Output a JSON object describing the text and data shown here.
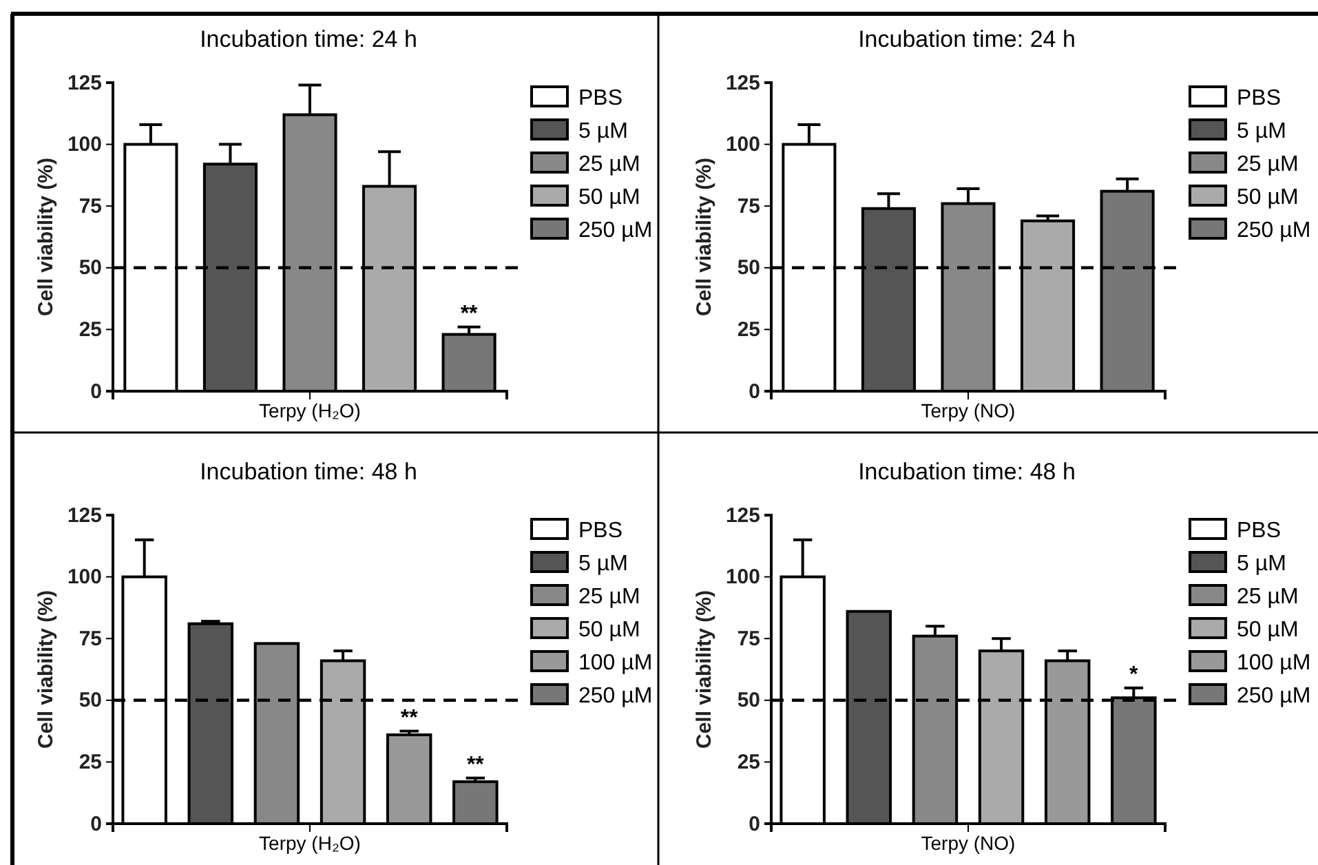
{
  "chart_data": [
    {
      "type": "bar",
      "title": "Incubation time: 24 h",
      "xlabel": "Terpy (H₂O)",
      "ylabel": "Cell viability (%)",
      "categories": [
        null
      ],
      "ylim": [
        0,
        125
      ],
      "yticks": [
        0,
        25,
        50,
        75,
        100,
        125
      ],
      "legend": "right",
      "ref_lines": [
        {
          "axis": "y",
          "value": 50,
          "line_style": "dashed"
        }
      ],
      "series": [
        {
          "name": "PBS",
          "color": "#ffffff",
          "values": [
            100
          ],
          "errors": [
            8
          ]
        },
        {
          "name": "5 µM",
          "color": "#555555",
          "values": [
            92
          ],
          "errors": [
            8
          ]
        },
        {
          "name": "25 µM",
          "color": "#888888",
          "values": [
            112
          ],
          "errors": [
            12
          ]
        },
        {
          "name": "50 µM",
          "color": "#aaaaaa",
          "values": [
            83
          ],
          "errors": [
            14
          ]
        },
        {
          "name": "250 µM",
          "color": "#777777",
          "values": [
            23
          ],
          "errors": [
            3
          ],
          "value_labels": [
            "**"
          ]
        }
      ]
    },
    {
      "type": "bar",
      "title": "Incubation time: 24 h",
      "xlabel": "Terpy (NO)",
      "ylabel": "Cell viability (%)",
      "categories": [
        null
      ],
      "ylim": [
        0,
        125
      ],
      "yticks": [
        0,
        25,
        50,
        75,
        100,
        125
      ],
      "legend": "right",
      "ref_lines": [
        {
          "axis": "y",
          "value": 50,
          "line_style": "dashed"
        }
      ],
      "series": [
        {
          "name": "PBS",
          "color": "#ffffff",
          "values": [
            100
          ],
          "errors": [
            8
          ]
        },
        {
          "name": "5 µM",
          "color": "#555555",
          "values": [
            74
          ],
          "errors": [
            6
          ]
        },
        {
          "name": "25 µM",
          "color": "#888888",
          "values": [
            76
          ],
          "errors": [
            6
          ]
        },
        {
          "name": "50 µM",
          "color": "#aaaaaa",
          "values": [
            69
          ],
          "errors": [
            2
          ]
        },
        {
          "name": "250 µM",
          "color": "#777777",
          "values": [
            81
          ],
          "errors": [
            5
          ]
        }
      ]
    },
    {
      "type": "bar",
      "title": "Incubation time: 48 h",
      "xlabel": "Terpy (H₂O)",
      "ylabel": "Cell viability (%)",
      "categories": [
        null
      ],
      "ylim": [
        0,
        125
      ],
      "yticks": [
        0,
        25,
        50,
        75,
        100,
        125
      ],
      "legend": "right",
      "ref_lines": [
        {
          "axis": "y",
          "value": 50,
          "line_style": "dashed"
        }
      ],
      "series": [
        {
          "name": "PBS",
          "color": "#ffffff",
          "values": [
            100
          ],
          "errors": [
            15
          ]
        },
        {
          "name": "5 µM",
          "color": "#555555",
          "values": [
            81
          ],
          "errors": [
            1
          ]
        },
        {
          "name": "25 µM",
          "color": "#888888",
          "values": [
            73
          ],
          "errors": [
            null
          ]
        },
        {
          "name": "50 µM",
          "color": "#aaaaaa",
          "values": [
            66
          ],
          "errors": [
            4
          ]
        },
        {
          "name": "100 µM",
          "color": "#999999",
          "values": [
            36
          ],
          "errors": [
            1.5
          ],
          "value_labels": [
            "**"
          ]
        },
        {
          "name": "250 µM",
          "color": "#777777",
          "values": [
            17
          ],
          "errors": [
            1.5
          ],
          "value_labels": [
            "**"
          ]
        }
      ]
    },
    {
      "type": "bar",
      "title": "Incubation time: 48 h",
      "xlabel": "Terpy (NO)",
      "ylabel": "Cell viability (%)",
      "categories": [
        null
      ],
      "ylim": [
        0,
        125
      ],
      "yticks": [
        0,
        25,
        50,
        75,
        100,
        125
      ],
      "legend": "right",
      "ref_lines": [
        {
          "axis": "y",
          "value": 50,
          "line_style": "dashed"
        }
      ],
      "series": [
        {
          "name": "PBS",
          "color": "#ffffff",
          "values": [
            100
          ],
          "errors": [
            15
          ]
        },
        {
          "name": "5 µM",
          "color": "#555555",
          "values": [
            86
          ],
          "errors": [
            null
          ]
        },
        {
          "name": "25 µM",
          "color": "#888888",
          "values": [
            76
          ],
          "errors": [
            4
          ]
        },
        {
          "name": "50 µM",
          "color": "#aaaaaa",
          "values": [
            70
          ],
          "errors": [
            5
          ]
        },
        {
          "name": "100 µM",
          "color": "#999999",
          "values": [
            66
          ],
          "errors": [
            4
          ]
        },
        {
          "name": "250 µM",
          "color": "#777777",
          "values": [
            51
          ],
          "errors": [
            4
          ],
          "value_labels": [
            "*"
          ]
        }
      ]
    }
  ]
}
